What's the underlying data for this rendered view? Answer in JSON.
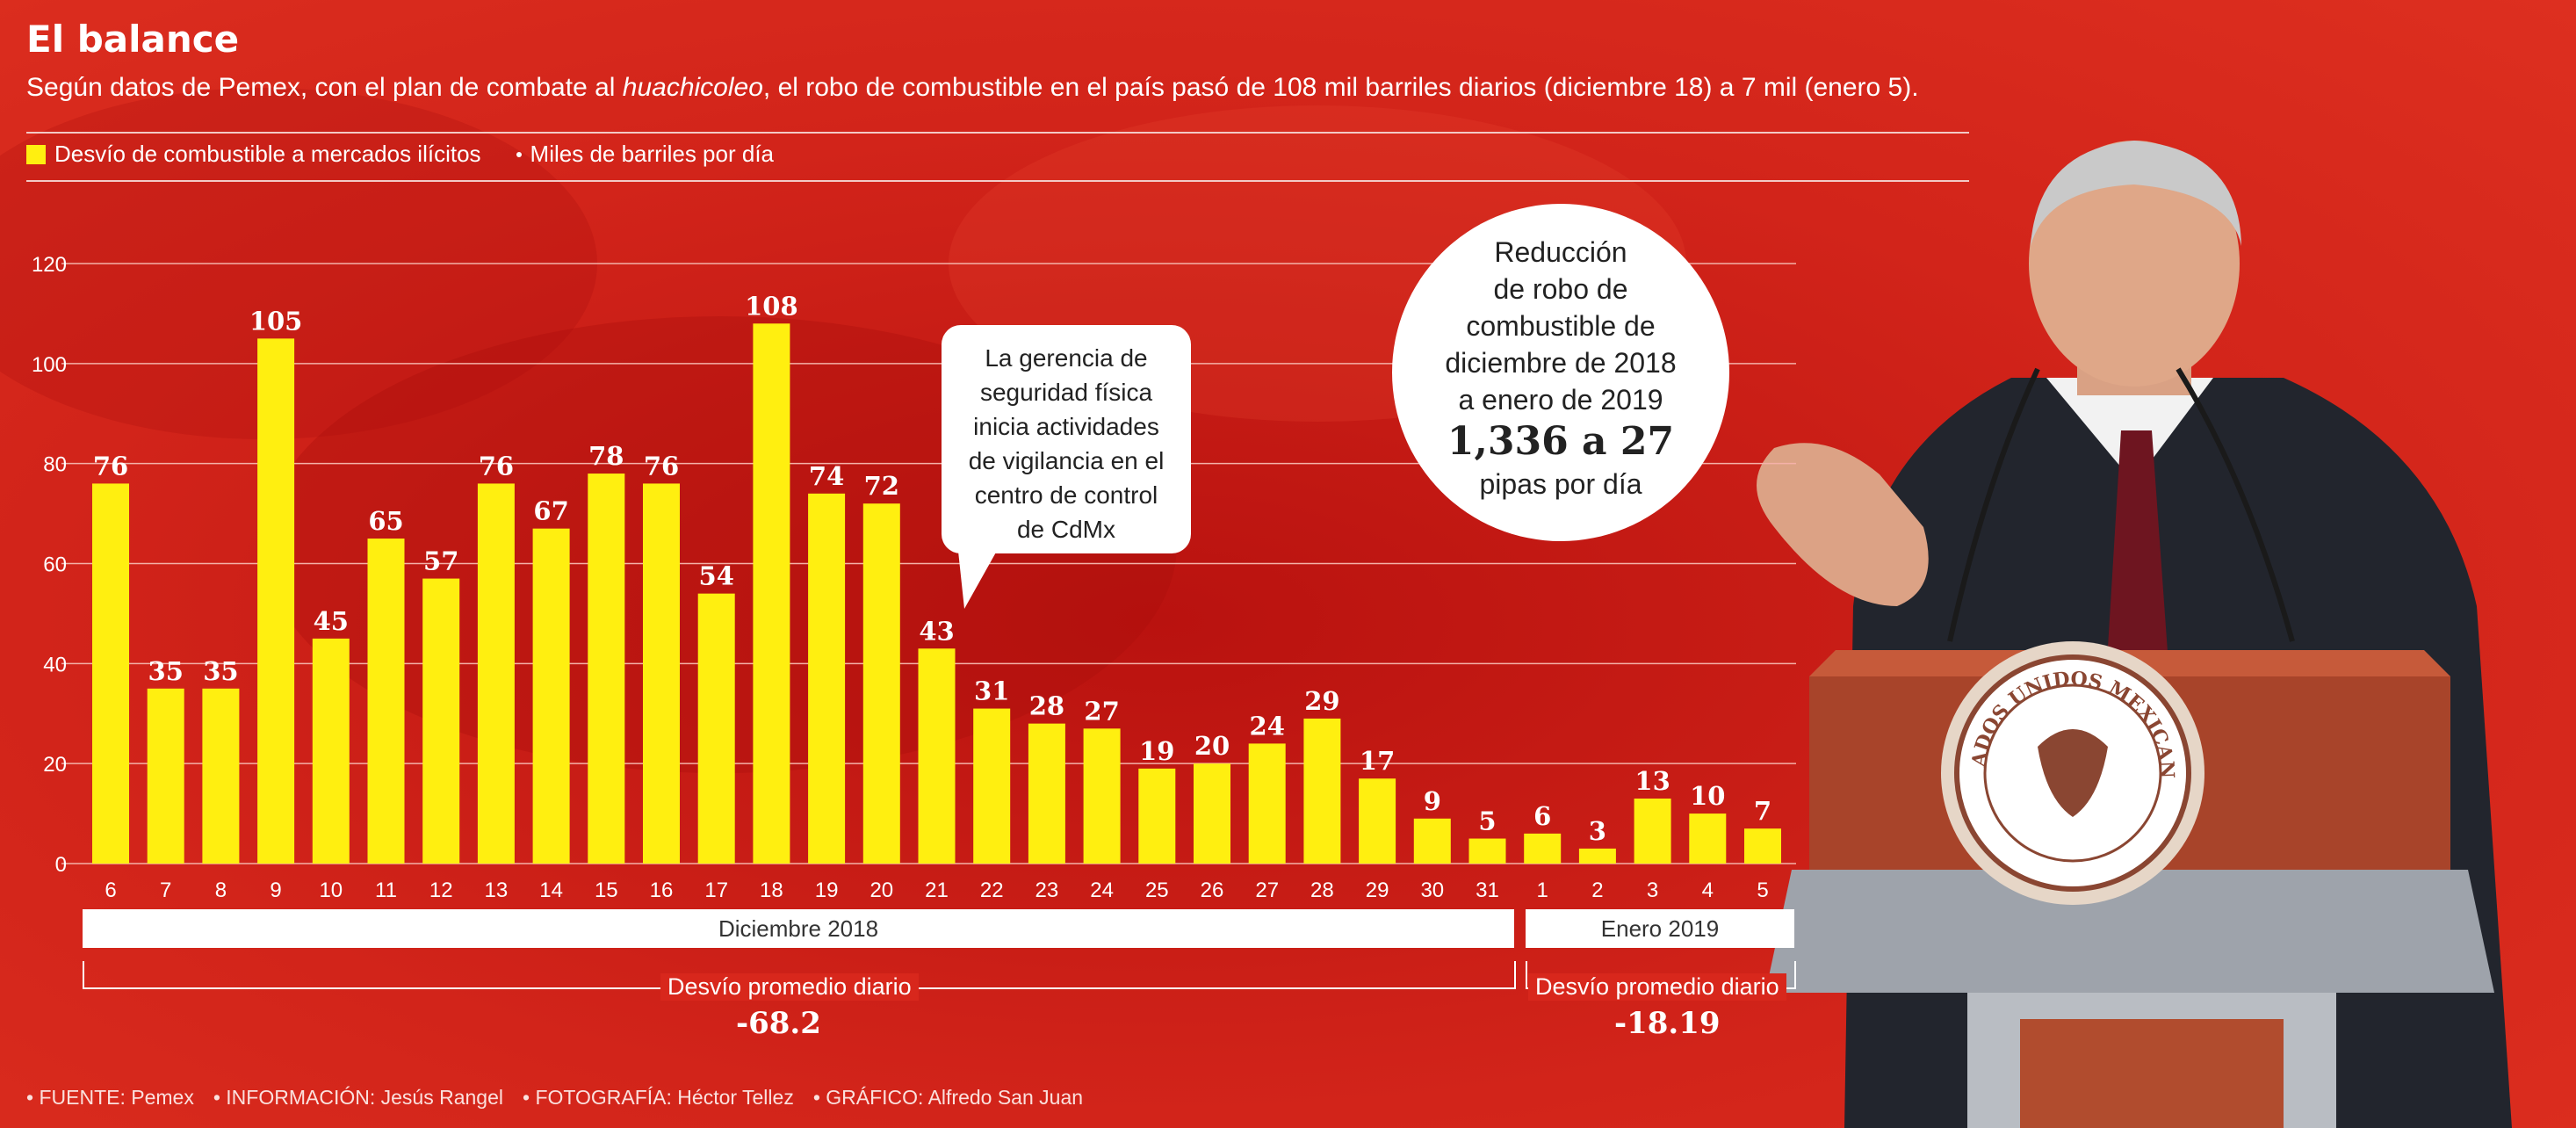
{
  "header": {
    "title": "El balance",
    "subtitle_before": "Según datos de Pemex, con el plan de combate al ",
    "subtitle_italic": "huachicoleo",
    "subtitle_after": ", el robo de combustible en el país pasó de 108 mil barriles diarios (diciembre 18) a 7 mil (enero 5)."
  },
  "legend": {
    "series_label": "Desvío de combustible a mercados ilícitos",
    "unit_label": "Miles de barriles por día"
  },
  "callout": {
    "lines": [
      "La gerencia de",
      "seguridad física",
      "inicia actividades",
      "de vigilancia en el",
      "centro de control",
      "de  CdMx"
    ]
  },
  "circle": {
    "lines": [
      "Reducción",
      "de robo de",
      "combustible de",
      "diciembre de 2018",
      "a enero de 2019"
    ],
    "big": "1,336 a 27",
    "after": "pipas por día"
  },
  "periods": {
    "dec_label": "Diciembre 2018",
    "jan_label": "Enero 2019",
    "dec_avg_label": "Desvío promedio diario",
    "dec_avg_value": "-68.2",
    "jan_avg_label": "Desvío promedio diario",
    "jan_avg_value": "-18.19"
  },
  "footer": {
    "source": "FUENTE: Pemex",
    "info": "INFORMACIÓN: Jesús Rangel",
    "photo": "FOTOGRAFÍA: Héctor Tellez",
    "graphic": "GRÁFICO: Alfredo San Juan"
  },
  "photo": {
    "seal_text": "ESTADOS UNIDOS MEXICANOS"
  },
  "colors": {
    "background": "#d8271c",
    "bar": "#ffef10",
    "text": "#ffffff"
  },
  "chart_data": {
    "type": "bar",
    "categories": [
      "6",
      "7",
      "8",
      "9",
      "10",
      "11",
      "12",
      "13",
      "14",
      "15",
      "16",
      "17",
      "18",
      "19",
      "20",
      "21",
      "22",
      "23",
      "24",
      "25",
      "26",
      "27",
      "28",
      "29",
      "30",
      "31",
      "1",
      "2",
      "3",
      "4",
      "5"
    ],
    "series": [
      {
        "name": "Desvío de combustible a mercados ilícitos",
        "values": [
          76,
          35,
          35,
          105,
          45,
          65,
          57,
          76,
          67,
          78,
          76,
          54,
          108,
          74,
          72,
          43,
          31,
          28,
          27,
          19,
          20,
          24,
          29,
          17,
          9,
          5,
          6,
          3,
          13,
          10,
          7
        ]
      }
    ],
    "yticks": [
      0,
      20,
      40,
      60,
      80,
      100,
      120
    ],
    "ylim": [
      0,
      120
    ],
    "grid": true,
    "legend": "top-left"
  }
}
